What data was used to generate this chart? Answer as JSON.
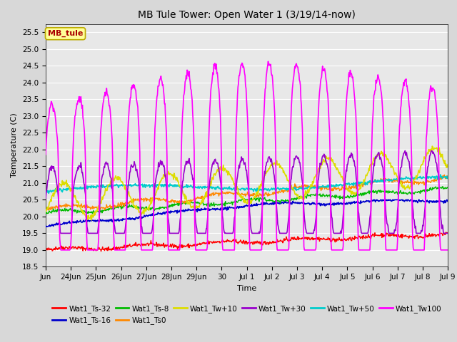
{
  "title": "MB Tule Tower: Open Water 1 (3/19/14-now)",
  "xlabel": "Time",
  "ylabel": "Temperature (C)",
  "ylim": [
    18.5,
    25.75
  ],
  "yticks": [
    18.5,
    19.0,
    19.5,
    20.0,
    20.5,
    21.0,
    21.5,
    22.0,
    22.5,
    23.0,
    23.5,
    24.0,
    24.5,
    25.0,
    25.5
  ],
  "legend_label": "MB_tule",
  "series": {
    "Wat1_Ts-32": {
      "color": "#ff0000",
      "lw": 1.0
    },
    "Wat1_Ts-16": {
      "color": "#0000cc",
      "lw": 1.2
    },
    "Wat1_Ts-8": {
      "color": "#00bb00",
      "lw": 1.0
    },
    "Wat1_Ts0": {
      "color": "#ff8800",
      "lw": 1.0
    },
    "Wat1_Tw+10": {
      "color": "#dddd00",
      "lw": 1.2
    },
    "Wat1_Tw+30": {
      "color": "#9900cc",
      "lw": 1.2
    },
    "Wat1_Tw+50": {
      "color": "#00cccc",
      "lw": 1.2
    },
    "Wat1_Tw100": {
      "color": "#ff00ff",
      "lw": 1.2
    }
  },
  "bg_color": "#d8d8d8",
  "plot_bg": "#e8e8e8",
  "grid_color": "#ffffff",
  "n_points": 800,
  "x_start": 0,
  "x_end": 16.0,
  "xtick_labels": [
    "Jun",
    "24Jun",
    "25Jun",
    "26Jun",
    "27Jun",
    "28Jun",
    "29Jun",
    "30",
    "Jul 1",
    "Jul 2",
    "Jul 3",
    "Jul 4",
    "Jul 5",
    "Jul 6",
    "Jul 7",
    "Jul 8",
    "Jul 9"
  ],
  "xtick_positions": [
    0,
    1,
    2,
    3,
    4,
    5,
    6,
    7,
    8,
    9,
    10,
    11,
    12,
    13,
    14,
    15,
    16
  ],
  "figsize": [
    6.4,
    4.8
  ],
  "dpi": 100
}
